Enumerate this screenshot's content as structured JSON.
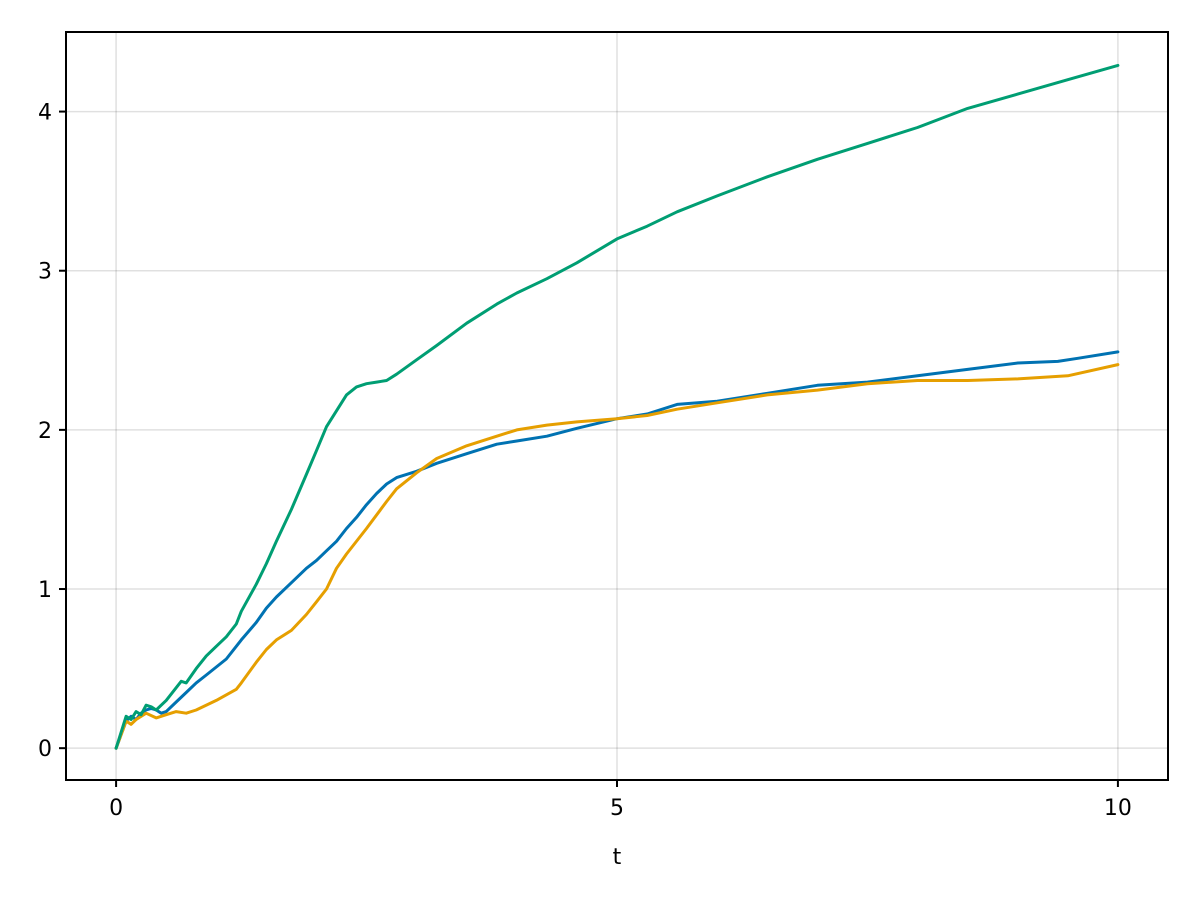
{
  "chart_data": {
    "type": "line",
    "title": "",
    "xlabel": "t",
    "ylabel": "",
    "xlim": [
      -0.5,
      10.5
    ],
    "ylim": [
      -0.2,
      4.5
    ],
    "xticks": [
      0,
      5,
      10
    ],
    "yticks": [
      0,
      1,
      2,
      3,
      4
    ],
    "xtick_labels": [
      "0",
      "5",
      "10"
    ],
    "ytick_labels": [
      "0",
      "1",
      "2",
      "3",
      "4"
    ],
    "grid": true,
    "legend": "none",
    "series": [
      {
        "color": "#0072b2",
        "x": [
          0,
          0.1,
          0.15,
          0.2,
          0.25,
          0.3,
          0.35,
          0.4,
          0.45,
          0.5,
          0.6,
          0.7,
          0.8,
          0.9,
          1.0,
          1.1,
          1.2,
          1.25,
          1.4,
          1.5,
          1.6,
          1.75,
          1.9,
          2.0,
          2.1,
          2.2,
          2.3,
          2.4,
          2.5,
          2.6,
          2.7,
          2.8,
          3.0,
          3.2,
          3.5,
          3.8,
          4.0,
          4.3,
          4.6,
          5.0,
          5.3,
          5.6,
          6.0,
          6.5,
          7.0,
          7.5,
          8.0,
          8.5,
          9.0,
          9.4,
          9.6,
          10.0
        ],
        "y": [
          0,
          0.17,
          0.2,
          0.18,
          0.22,
          0.24,
          0.25,
          0.24,
          0.22,
          0.23,
          0.29,
          0.35,
          0.41,
          0.46,
          0.51,
          0.56,
          0.64,
          0.68,
          0.79,
          0.88,
          0.95,
          1.04,
          1.13,
          1.18,
          1.24,
          1.3,
          1.38,
          1.45,
          1.53,
          1.6,
          1.66,
          1.7,
          1.74,
          1.79,
          1.85,
          1.91,
          1.93,
          1.96,
          2.01,
          2.07,
          2.1,
          2.16,
          2.18,
          2.23,
          2.28,
          2.3,
          2.34,
          2.38,
          2.42,
          2.43,
          2.45,
          2.49
        ]
      },
      {
        "color": "#e69f00",
        "x": [
          0,
          0.1,
          0.15,
          0.2,
          0.3,
          0.4,
          0.5,
          0.6,
          0.7,
          0.8,
          1.0,
          1.2,
          1.25,
          1.4,
          1.5,
          1.6,
          1.75,
          1.9,
          2.0,
          2.1,
          2.2,
          2.3,
          2.5,
          2.7,
          2.8,
          3.0,
          3.2,
          3.5,
          3.8,
          4.0,
          4.3,
          4.6,
          5.0,
          5.3,
          5.6,
          6.0,
          6.5,
          7.0,
          7.5,
          8.0,
          8.5,
          9.0,
          9.5,
          10.0
        ],
        "y": [
          0,
          0.17,
          0.15,
          0.18,
          0.22,
          0.19,
          0.21,
          0.23,
          0.22,
          0.24,
          0.3,
          0.37,
          0.41,
          0.54,
          0.62,
          0.68,
          0.74,
          0.84,
          0.92,
          1.0,
          1.13,
          1.22,
          1.38,
          1.55,
          1.63,
          1.73,
          1.82,
          1.9,
          1.96,
          2.0,
          2.03,
          2.05,
          2.07,
          2.09,
          2.13,
          2.17,
          2.22,
          2.25,
          2.29,
          2.31,
          2.31,
          2.32,
          2.34,
          2.41
        ]
      },
      {
        "color": "#009e73",
        "x": [
          0,
          0.05,
          0.1,
          0.15,
          0.2,
          0.25,
          0.3,
          0.35,
          0.4,
          0.45,
          0.5,
          0.6,
          0.65,
          0.7,
          0.8,
          0.9,
          1.0,
          1.1,
          1.2,
          1.25,
          1.4,
          1.5,
          1.6,
          1.75,
          1.9,
          2.0,
          2.1,
          2.2,
          2.3,
          2.4,
          2.5,
          2.6,
          2.7,
          2.8,
          3.0,
          3.2,
          3.5,
          3.8,
          4.0,
          4.3,
          4.6,
          5.0,
          5.3,
          5.6,
          6.0,
          6.5,
          7.0,
          7.5,
          8.0,
          8.5,
          9.0,
          9.5,
          10.0
        ],
        "y": [
          0,
          0.1,
          0.2,
          0.18,
          0.23,
          0.21,
          0.27,
          0.26,
          0.24,
          0.27,
          0.3,
          0.38,
          0.42,
          0.41,
          0.5,
          0.58,
          0.64,
          0.7,
          0.78,
          0.86,
          1.03,
          1.16,
          1.3,
          1.5,
          1.72,
          1.87,
          2.02,
          2.12,
          2.22,
          2.27,
          2.29,
          2.3,
          2.31,
          2.35,
          2.44,
          2.53,
          2.67,
          2.79,
          2.86,
          2.95,
          3.05,
          3.2,
          3.28,
          3.37,
          3.47,
          3.59,
          3.7,
          3.8,
          3.9,
          4.02,
          4.11,
          4.2,
          4.29
        ]
      }
    ]
  }
}
